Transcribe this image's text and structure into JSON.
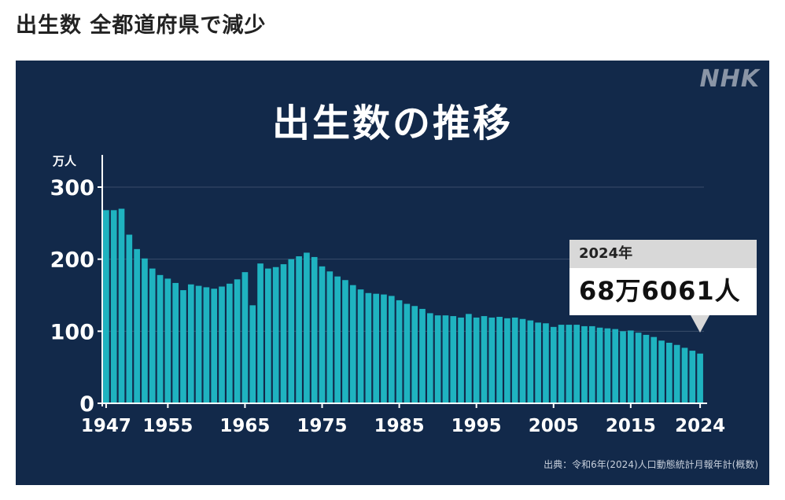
{
  "headline": "出生数 全都道府県で減少",
  "logo": "NHK",
  "source": "出典：令和6年(2024)人口動態統計月報年計(概数)",
  "callout": {
    "year": "2024年",
    "value": "68万6061人"
  },
  "colors": {
    "panel": "#12294a",
    "bar": "#1fb3c0",
    "axis": "#ffffff",
    "grid": "#3a4c6a"
  },
  "chart_data": {
    "type": "bar",
    "title": "出生数の推移",
    "unit_label": "万人",
    "ylim": [
      0,
      300
    ],
    "yticks": [
      0,
      100,
      200,
      300
    ],
    "xtick_labels": [
      "1947",
      "1955",
      "1965",
      "1975",
      "1985",
      "1995",
      "2005",
      "2015",
      "2024"
    ],
    "grid": true,
    "categories": [
      1947,
      1948,
      1949,
      1950,
      1951,
      1952,
      1953,
      1954,
      1955,
      1956,
      1957,
      1958,
      1959,
      1960,
      1961,
      1962,
      1963,
      1964,
      1965,
      1966,
      1967,
      1968,
      1969,
      1970,
      1971,
      1972,
      1973,
      1974,
      1975,
      1976,
      1977,
      1978,
      1979,
      1980,
      1981,
      1982,
      1983,
      1984,
      1985,
      1986,
      1987,
      1988,
      1989,
      1990,
      1991,
      1992,
      1993,
      1994,
      1995,
      1996,
      1997,
      1998,
      1999,
      2000,
      2001,
      2002,
      2003,
      2004,
      2005,
      2006,
      2007,
      2008,
      2009,
      2010,
      2011,
      2012,
      2013,
      2014,
      2015,
      2016,
      2017,
      2018,
      2019,
      2020,
      2021,
      2022,
      2023,
      2024
    ],
    "values": [
      268,
      268,
      270,
      234,
      214,
      201,
      187,
      178,
      173,
      167,
      157,
      165,
      163,
      161,
      159,
      162,
      166,
      172,
      182,
      136,
      194,
      187,
      189,
      193,
      200,
      204,
      209,
      203,
      190,
      183,
      176,
      171,
      164,
      158,
      153,
      152,
      151,
      149,
      143,
      138,
      135,
      131,
      125,
      122,
      122,
      121,
      119,
      124,
      119,
      121,
      119,
      120,
      118,
      119,
      117,
      115,
      112,
      111,
      106,
      109,
      109,
      109,
      107,
      107,
      105,
      104,
      103,
      100,
      101,
      98,
      95,
      92,
      87,
      84,
      81,
      77,
      73,
      69
    ]
  }
}
